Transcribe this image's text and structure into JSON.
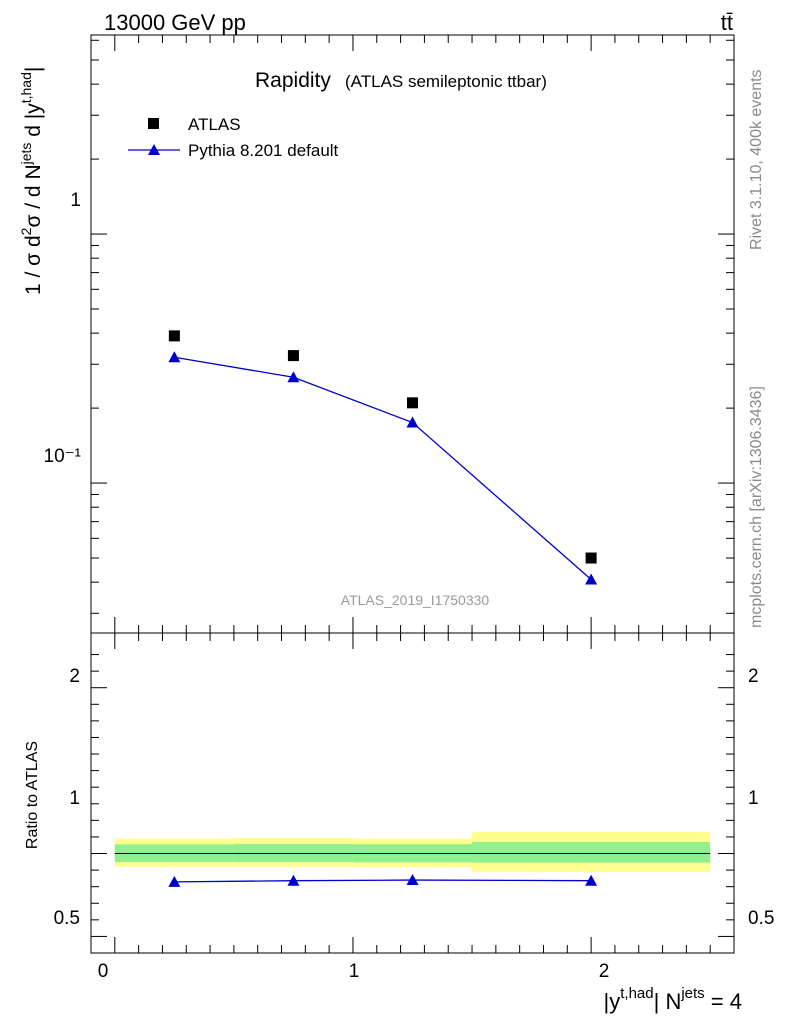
{
  "header": {
    "energy_label": "13000 GeV pp",
    "process_label": "tt̄"
  },
  "side_labels": {
    "rivet": "Rivet 3.1.10,  400k events",
    "source": "mcplots.cern.ch [arXiv:1306.3436]"
  },
  "chart_data": [
    {
      "type": "scatter",
      "title": "Rapidity",
      "subtitle": "(ATLAS semileptonic ttbar)",
      "analysis_id": "ATLAS_2019_I1750330",
      "xlabel": "|y^{t,had}| N^{jets} = 4",
      "ylabel": "1 / σ d²σ / d N^{jets} d |y^{t,had}|",
      "yscale": "log",
      "xlim": [
        -0.1,
        2.6
      ],
      "ylim": [
        0.025,
        6.3
      ],
      "y_tick_labels": [
        "10⁻¹",
        "1"
      ],
      "legend_position": "top-left",
      "series": [
        {
          "name": "ATLAS",
          "marker": "square",
          "color": "#000000",
          "x": [
            0.25,
            0.75,
            1.25,
            2.0
          ],
          "y": [
            0.39,
            0.325,
            0.21,
            0.05
          ]
        },
        {
          "name": "Pythia 8.201 default",
          "marker": "triangle",
          "color": "#0000cc",
          "x": [
            0.25,
            0.75,
            1.25,
            2.0
          ],
          "y": [
            0.32,
            0.266,
            0.175,
            0.041
          ]
        }
      ]
    },
    {
      "type": "line",
      "ylabel": "Ratio to ATLAS",
      "xlabel": "|y^{t,had}| N^{jets} = 4",
      "xlim": [
        -0.1,
        2.6
      ],
      "ylim": [
        0.4,
        2.33
      ],
      "x_tick_labels": [
        "0",
        "1",
        "2"
      ],
      "y_tick_labels": [
        "0.5",
        "1",
        "2"
      ],
      "reference_line": 1,
      "uncertainty_bands": [
        {
          "x_low": 0.0,
          "x_high": 0.5,
          "inner": [
            0.949,
            1.055
          ],
          "outer": [
            0.92,
            1.09
          ]
        },
        {
          "x_low": 0.5,
          "x_high": 1.0,
          "inner": [
            0.949,
            1.058
          ],
          "outer": [
            0.92,
            1.095
          ]
        },
        {
          "x_low": 1.0,
          "x_high": 1.5,
          "inner": [
            0.947,
            1.056
          ],
          "outer": [
            0.917,
            1.09
          ]
        },
        {
          "x_low": 1.5,
          "x_high": 2.5,
          "inner": [
            0.945,
            1.07
          ],
          "outer": [
            0.89,
            1.13
          ]
        }
      ],
      "band_colors": {
        "inner": "#90f090",
        "outer": "#ffff90"
      },
      "series": [
        {
          "name": "Pythia 8.201 default",
          "color": "#0000cc",
          "x": [
            0.25,
            0.75,
            1.25,
            2.0
          ],
          "y": [
            0.829,
            0.836,
            0.84,
            0.836
          ]
        }
      ]
    }
  ]
}
